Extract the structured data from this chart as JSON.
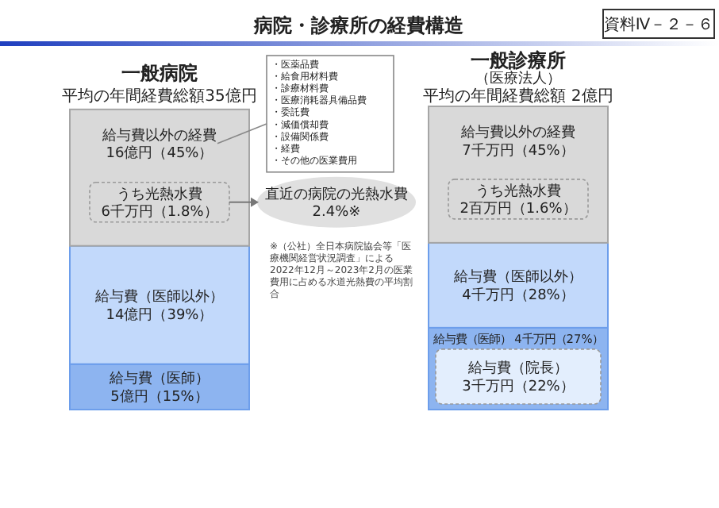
{
  "chart_data": {
    "type": "bar",
    "stacked": true,
    "title": "病院・診療所の経費構造",
    "categories": [
      "一般病院",
      "一般診療所"
    ],
    "series": [
      {
        "name": "給与費（医師）",
        "color": "#8db4f0",
        "values": [
          15,
          27
        ],
        "value_labels": [
          "5億円（15%）",
          "4千万円（27%）"
        ]
      },
      {
        "name": "給与費（医師以外）",
        "color": "#c2d9fb",
        "values": [
          39,
          28
        ],
        "value_labels": [
          "14億円（39%）",
          "4千万円（28%）"
        ]
      },
      {
        "name": "給与費以外の経費",
        "color": "#d9d9d9",
        "values": [
          45,
          45
        ],
        "value_labels": [
          "16億円（45%）",
          "7千万円（45%）"
        ]
      }
    ],
    "annotations": [
      "資料Ⅳ－２－６",
      "（医療法人）",
      "平均の年間経費総額35億円",
      "平均の年間経費総額 2億円",
      "うち光熱水費\n6千万円（1.8%）",
      "うち光熱水費\n2百万円（1.6%）",
      "給与費（院長）\n3千万円（22%）",
      "直近の病院の光熱水費\n2.4%※",
      "※（公社）全日本病院協会等「医療機関経営状況調査」による2022年12月～2023年2月の医業費用に占める水道光熱費の平均割合",
      "・医薬品費",
      "・給食用材料費",
      "・診療材料費",
      "・医療消耗器具備品費",
      "・委託費",
      "・減価償却費",
      "・設備関係費",
      "・経費",
      "・その他の医業費用"
    ]
  }
}
